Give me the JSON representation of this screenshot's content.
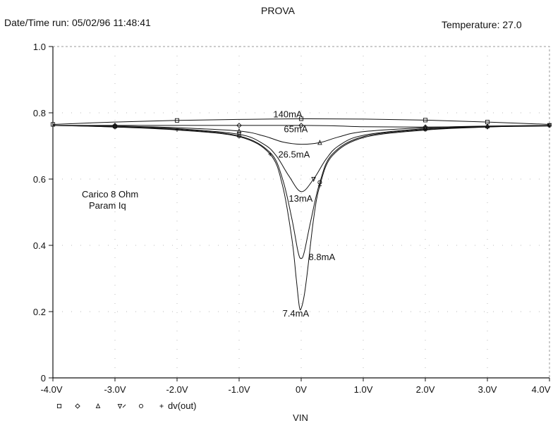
{
  "header": {
    "title": "PROVA",
    "datetime": "Date/Time run: 05/02/96  11:48:41",
    "temperature": "Temperature: 27.0"
  },
  "annotation": {
    "line1": "Carico 8 Ohm",
    "line2": "Param Iq"
  },
  "legend_text": "dv(out)",
  "chart_data": {
    "type": "line",
    "xlabel": "VIN",
    "ylabel": "",
    "xlim": [
      -4.0,
      4.0
    ],
    "ylim": [
      0,
      1.0
    ],
    "x_ticks": [
      "-4.0V",
      "-3.0V",
      "-2.0V",
      "-1.0V",
      "0V",
      "1.0V",
      "2.0V",
      "3.0V",
      "4.0V"
    ],
    "y_ticks": [
      "0",
      "0.2",
      "0.4",
      "0.6",
      "0.8",
      "1.0"
    ],
    "grid": true,
    "series": [
      {
        "marker": "square",
        "label": "140mA",
        "values": [
          [
            -4.0,
            0.765
          ],
          [
            -3.0,
            0.772
          ],
          [
            -2.0,
            0.777
          ],
          [
            -1.0,
            0.78
          ],
          [
            0.0,
            0.782
          ],
          [
            1.0,
            0.781
          ],
          [
            2.0,
            0.778
          ],
          [
            3.0,
            0.772
          ],
          [
            4.0,
            0.765
          ]
        ]
      },
      {
        "marker": "diamond",
        "label": "65mA",
        "values": [
          [
            -4.0,
            0.762
          ],
          [
            -3.0,
            0.762
          ],
          [
            -2.0,
            0.762
          ],
          [
            -1.0,
            0.762
          ],
          [
            -0.5,
            0.762
          ],
          [
            0.0,
            0.762
          ],
          [
            0.5,
            0.761
          ],
          [
            1.0,
            0.758
          ],
          [
            2.0,
            0.757
          ],
          [
            3.0,
            0.758
          ],
          [
            4.0,
            0.76
          ]
        ]
      },
      {
        "marker": "triangle",
        "label": "26.5mA",
        "values": [
          [
            -4.0,
            0.762
          ],
          [
            -3.0,
            0.76
          ],
          [
            -2.0,
            0.755
          ],
          [
            -1.0,
            0.745
          ],
          [
            -0.6,
            0.73
          ],
          [
            -0.3,
            0.712
          ],
          [
            0.0,
            0.705
          ],
          [
            0.3,
            0.71
          ],
          [
            0.6,
            0.727
          ],
          [
            1.0,
            0.743
          ],
          [
            2.0,
            0.755
          ],
          [
            3.0,
            0.76
          ],
          [
            4.0,
            0.762
          ]
        ]
      },
      {
        "marker": "nabla",
        "label": "13mA",
        "values": [
          [
            -4.0,
            0.762
          ],
          [
            -3.0,
            0.758
          ],
          [
            -2.0,
            0.752
          ],
          [
            -1.0,
            0.735
          ],
          [
            -0.6,
            0.705
          ],
          [
            -0.4,
            0.67
          ],
          [
            -0.2,
            0.61
          ],
          [
            0.0,
            0.562
          ],
          [
            0.2,
            0.6
          ],
          [
            0.4,
            0.66
          ],
          [
            0.6,
            0.7
          ],
          [
            1.0,
            0.732
          ],
          [
            2.0,
            0.752
          ],
          [
            3.0,
            0.758
          ],
          [
            4.0,
            0.762
          ]
        ]
      },
      {
        "marker": "circle",
        "label": "8.8mA",
        "values": [
          [
            -4.0,
            0.762
          ],
          [
            -3.0,
            0.758
          ],
          [
            -2.0,
            0.75
          ],
          [
            -1.0,
            0.73
          ],
          [
            -0.5,
            0.68
          ],
          [
            -0.3,
            0.6
          ],
          [
            -0.15,
            0.48
          ],
          [
            -0.05,
            0.38
          ],
          [
            0.0,
            0.36
          ],
          [
            0.05,
            0.38
          ],
          [
            0.15,
            0.47
          ],
          [
            0.3,
            0.59
          ],
          [
            0.5,
            0.675
          ],
          [
            1.0,
            0.728
          ],
          [
            2.0,
            0.75
          ],
          [
            3.0,
            0.758
          ],
          [
            4.0,
            0.762
          ]
        ]
      },
      {
        "marker": "plus",
        "label": "7.4mA",
        "values": [
          [
            -4.0,
            0.762
          ],
          [
            -3.0,
            0.757
          ],
          [
            -2.0,
            0.748
          ],
          [
            -1.0,
            0.728
          ],
          [
            -0.5,
            0.675
          ],
          [
            -0.3,
            0.58
          ],
          [
            -0.15,
            0.42
          ],
          [
            -0.08,
            0.3
          ],
          [
            -0.03,
            0.215
          ],
          [
            0.0,
            0.21
          ],
          [
            0.05,
            0.25
          ],
          [
            0.1,
            0.32
          ],
          [
            0.2,
            0.48
          ],
          [
            0.3,
            0.58
          ],
          [
            0.5,
            0.67
          ],
          [
            1.0,
            0.725
          ],
          [
            2.0,
            0.748
          ],
          [
            3.0,
            0.757
          ],
          [
            4.0,
            0.762
          ]
        ]
      }
    ]
  }
}
